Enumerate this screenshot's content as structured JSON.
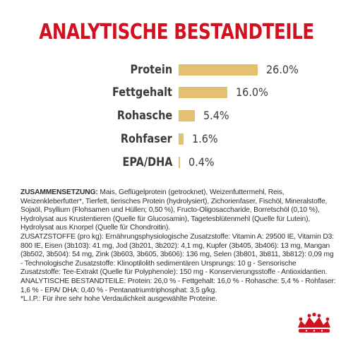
{
  "title": "ANALYTISCHE BESTANDTEILE",
  "nutrients": [
    {
      "label": "Protein",
      "value": "26.0%",
      "percent": 26.0
    },
    {
      "label": "Fettgehalt",
      "value": "16.0%",
      "percent": 16.0
    },
    {
      "label": "Rohasche",
      "value": "5.4%",
      "percent": 5.4
    },
    {
      "label": "Rohfaser",
      "value": "1.6%",
      "percent": 1.6
    },
    {
      "label": "EPA/DHA",
      "value": "0.4%",
      "percent": 0.4
    }
  ],
  "composition": {
    "heading": "ZUSAMMENSETZUNG:",
    "text": " Mais, Geflügelprotein (getrocknet), Weizenfuttermehl, Reis, Weizenkleberfutter*, Tierfett, tierisches Protein (hydrolysiert), Zichorienfaser, Fischöl, Mineralstoffe, Sojaöl, Psyllium (Flohsamen und Hüllen; 0,50 %), Fructo-Oligosaccharide, Borretschöl (0,10 %), Hydrolysat aus Krustentieren (Quelle für Glucosamin), Tagetesblütenmehl (Quelle für Lutein), Hydrolysat aus Knorpel (Quelle für Chondroitin).",
    "additives": "ZUSATZSTOFFE (pro kg): Ernährungsphysiologische Zusatzstoffe: Vitamin A: 29500 IE, Vitamin D3: 800 IE, Eisen (3b103): 41 mg, Jod (3b201, 3b202): 4,1 mg, Kupfer (3b405, 3b406): 13 mg, Mangan (3b502, 3b504): 54 mg, Zink (3b603, 3b605, 3b606): 136 mg, Selen (3b801, 3b811, 3b812): 0,09 mg - Technologische Zusatzstoffe: Klinoptilolith sedimentären Ursprungs: 10 g - Sensorische Zusatzstoffe: Tee-Extrakt (Quelle für Polyphenole): 150 mg - Konservierungsstoffe - Antioxidantien.",
    "analytical": "ANALYTISCHE BESTANDTEILE: Protein: 26,0 % - Fettgehalt: 16,0 % - Rohasche: 5,4 % - Rohfaser: 1,6 % - EPA/ DHA: 0,40 % - Pentanatriumtriphosphat: 3,5 g/kg.",
    "footnote": "*L.I.P.: Für ihre sehr hohe Verdaulichkeit ausgewählte Proteine."
  },
  "logo": {
    "name": "crown-logo",
    "color": "#d3101f"
  },
  "colors": {
    "title": "#d3101f",
    "bar": "#e5bf72",
    "text": "#3a3a3a"
  }
}
